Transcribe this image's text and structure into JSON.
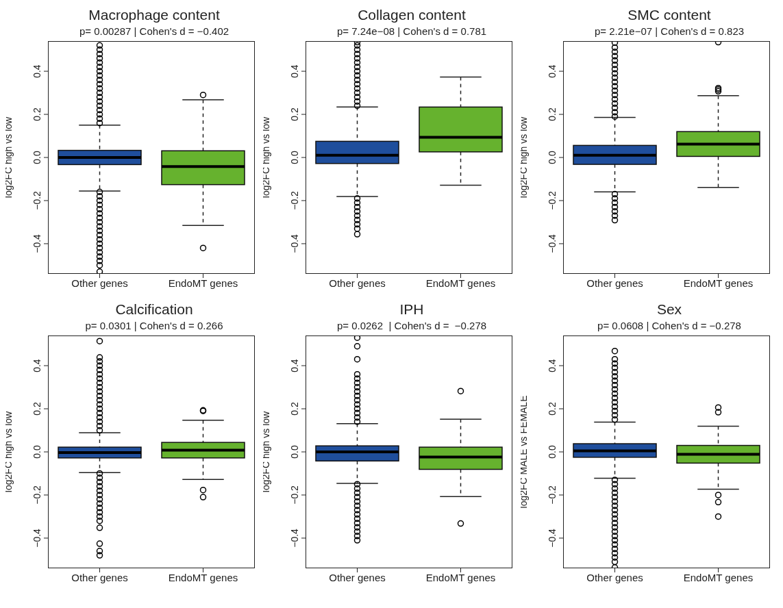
{
  "chart_data": [
    {
      "type": "box",
      "title": "Macrophage content",
      "subtitle": "p= 0.00287 | Cohen's d = −0.402",
      "ylabel": "log2FC high vs low",
      "categories": [
        "Other genes",
        "EndoMT genes"
      ],
      "colors": [
        "#1f4e9c",
        "#66b22e"
      ],
      "ylim": [
        -0.54,
        0.54
      ],
      "yticks": [
        {
          "value": -0.4,
          "label": "−0.4"
        },
        {
          "value": -0.2,
          "label": "−0.2"
        },
        {
          "value": 0,
          "label": "0.0"
        },
        {
          "value": 0.2,
          "label": "0.2"
        },
        {
          "value": 0.4,
          "label": "0.4"
        }
      ],
      "boxes": [
        {
          "low": -0.156,
          "q1": -0.033,
          "median": 0.0,
          "q3": 0.033,
          "high": 0.15,
          "outliers": [
            0.16,
            0.18,
            0.2,
            0.22,
            0.24,
            0.26,
            0.28,
            0.3,
            0.32,
            0.34,
            0.36,
            0.38,
            0.4,
            0.42,
            0.44,
            0.46,
            0.48,
            0.5,
            0.52,
            -0.16,
            -0.18,
            -0.2,
            -0.22,
            -0.24,
            -0.26,
            -0.28,
            -0.3,
            -0.32,
            -0.34,
            -0.36,
            -0.38,
            -0.4,
            -0.42,
            -0.44,
            -0.46,
            -0.48,
            -0.5,
            -0.53
          ]
        },
        {
          "low": -0.315,
          "q1": -0.126,
          "median": -0.042,
          "q3": 0.031,
          "high": 0.268,
          "outliers": [
            0.29,
            -0.42
          ]
        }
      ]
    },
    {
      "type": "box",
      "title": "Collagen content",
      "subtitle": "p= 7.24e−08 | Cohen's d = 0.781",
      "ylabel": "log2FC high vs low",
      "categories": [
        "Other genes",
        "EndoMT genes"
      ],
      "colors": [
        "#1f4e9c",
        "#66b22e"
      ],
      "ylim": [
        -0.54,
        0.54
      ],
      "yticks": [
        {
          "value": -0.4,
          "label": "−0.4"
        },
        {
          "value": -0.2,
          "label": "−0.2"
        },
        {
          "value": 0,
          "label": "0.0"
        },
        {
          "value": 0.2,
          "label": "0.2"
        },
        {
          "value": 0.4,
          "label": "0.4"
        }
      ],
      "boxes": [
        {
          "low": -0.181,
          "q1": -0.028,
          "median": 0.01,
          "q3": 0.075,
          "high": 0.234,
          "outliers": [
            0.24,
            0.26,
            0.28,
            0.3,
            0.32,
            0.34,
            0.36,
            0.38,
            0.4,
            0.42,
            0.44,
            0.46,
            0.48,
            0.5,
            0.52,
            0.535,
            -0.19,
            -0.21,
            -0.23,
            -0.25,
            -0.27,
            -0.29,
            -0.31,
            -0.33,
            -0.356
          ]
        },
        {
          "low": -0.129,
          "q1": 0.026,
          "median": 0.094,
          "q3": 0.234,
          "high": 0.373
        }
      ]
    },
    {
      "type": "box",
      "title": "SMC content",
      "subtitle": "p= 2.21e−07 | Cohen's d = 0.823",
      "ylabel": "log2FC high vs low",
      "categories": [
        "Other genes",
        "EndoMT genes"
      ],
      "colors": [
        "#1f4e9c",
        "#66b22e"
      ],
      "ylim": [
        -0.54,
        0.54
      ],
      "yticks": [
        {
          "value": -0.4,
          "label": "−0.4"
        },
        {
          "value": -0.2,
          "label": "−0.2"
        },
        {
          "value": 0,
          "label": "0.0"
        },
        {
          "value": 0.2,
          "label": "0.2"
        },
        {
          "value": 0.4,
          "label": "0.4"
        }
      ],
      "boxes": [
        {
          "low": -0.16,
          "q1": -0.032,
          "median": 0.01,
          "q3": 0.056,
          "high": 0.186,
          "outliers": [
            0.19,
            0.21,
            0.23,
            0.25,
            0.27,
            0.29,
            0.31,
            0.33,
            0.35,
            0.37,
            0.39,
            0.41,
            0.43,
            0.45,
            0.47,
            0.49,
            0.51,
            0.533,
            -0.17,
            -0.19,
            -0.21,
            -0.23,
            -0.25,
            -0.27,
            -0.291
          ]
        },
        {
          "low": -0.139,
          "q1": 0.005,
          "median": 0.062,
          "q3": 0.12,
          "high": 0.287,
          "outliers": [
            0.307,
            0.315,
            0.322,
            0.535
          ]
        }
      ]
    },
    {
      "type": "box",
      "title": "Calcification",
      "subtitle": "p= 0.0301 | Cohen's d = 0.266",
      "ylabel": "log2FC high vs low",
      "categories": [
        "Other genes",
        "EndoMT genes"
      ],
      "colors": [
        "#1f4e9c",
        "#66b22e"
      ],
      "ylim": [
        -0.54,
        0.54
      ],
      "yticks": [
        {
          "value": -0.4,
          "label": "−0.4"
        },
        {
          "value": -0.2,
          "label": "−0.2"
        },
        {
          "value": 0,
          "label": "0.0"
        },
        {
          "value": 0.2,
          "label": "0.2"
        },
        {
          "value": 0.4,
          "label": "0.4"
        }
      ],
      "boxes": [
        {
          "low": -0.096,
          "q1": -0.028,
          "median": -0.003,
          "q3": 0.022,
          "high": 0.089,
          "outliers": [
            0.1,
            0.12,
            0.14,
            0.16,
            0.18,
            0.2,
            0.22,
            0.24,
            0.26,
            0.28,
            0.3,
            0.32,
            0.34,
            0.36,
            0.38,
            0.4,
            0.42,
            0.438,
            0.514,
            -0.1,
            -0.12,
            -0.14,
            -0.16,
            -0.18,
            -0.2,
            -0.22,
            -0.24,
            -0.26,
            -0.28,
            -0.3,
            -0.32,
            -0.352,
            -0.426,
            -0.46,
            -0.48
          ]
        },
        {
          "low": -0.128,
          "q1": -0.028,
          "median": 0.008,
          "q3": 0.044,
          "high": 0.147,
          "outliers": [
            0.19,
            0.193,
            -0.177,
            -0.21
          ]
        }
      ]
    },
    {
      "type": "box",
      "title": "IPH",
      "subtitle": "p= 0.0262  | Cohen's d =  −0.278",
      "ylabel": "log2FC high vs low",
      "categories": [
        "Other genes",
        "EndoMT genes"
      ],
      "colors": [
        "#1f4e9c",
        "#66b22e"
      ],
      "ylim": [
        -0.54,
        0.54
      ],
      "yticks": [
        {
          "value": -0.4,
          "label": "−0.4"
        },
        {
          "value": -0.2,
          "label": "−0.2"
        },
        {
          "value": 0,
          "label": "0.0"
        },
        {
          "value": 0.2,
          "label": "0.2"
        },
        {
          "value": 0.4,
          "label": "0.4"
        }
      ],
      "boxes": [
        {
          "low": -0.146,
          "q1": -0.042,
          "median": 0.0,
          "q3": 0.028,
          "high": 0.131,
          "outliers": [
            0.14,
            0.16,
            0.18,
            0.2,
            0.22,
            0.24,
            0.26,
            0.28,
            0.3,
            0.32,
            0.34,
            0.36,
            0.43,
            0.49,
            0.53,
            -0.15,
            -0.17,
            -0.19,
            -0.21,
            -0.23,
            -0.25,
            -0.27,
            -0.29,
            -0.31,
            -0.33,
            -0.35,
            -0.37,
            -0.39,
            -0.41
          ]
        },
        {
          "low": -0.207,
          "q1": -0.081,
          "median": -0.024,
          "q3": 0.022,
          "high": 0.152,
          "outliers": [
            0.282,
            -0.332
          ]
        }
      ]
    },
    {
      "type": "box",
      "title": "Sex",
      "subtitle": "p= 0.0608 | Cohen's d = −0.278",
      "ylabel": "log2FC MALE vs FEMALE",
      "categories": [
        "Other genes",
        "EndoMT genes"
      ],
      "colors": [
        "#1f4e9c",
        "#66b22e"
      ],
      "ylim": [
        -0.54,
        0.54
      ],
      "yticks": [
        {
          "value": -0.4,
          "label": "−0.4"
        },
        {
          "value": -0.2,
          "label": "−0.2"
        },
        {
          "value": 0,
          "label": "0.0"
        },
        {
          "value": 0.2,
          "label": "0.2"
        },
        {
          "value": 0.4,
          "label": "0.4"
        }
      ],
      "boxes": [
        {
          "low": -0.122,
          "q1": -0.025,
          "median": 0.005,
          "q3": 0.038,
          "high": 0.138,
          "outliers": [
            0.15,
            0.17,
            0.19,
            0.21,
            0.23,
            0.25,
            0.27,
            0.29,
            0.31,
            0.33,
            0.35,
            0.37,
            0.39,
            0.41,
            0.43,
            0.468,
            -0.13,
            -0.15,
            -0.17,
            -0.19,
            -0.21,
            -0.23,
            -0.25,
            -0.27,
            -0.29,
            -0.31,
            -0.33,
            -0.35,
            -0.37,
            -0.39,
            -0.41,
            -0.43,
            -0.45,
            -0.47,
            -0.49,
            -0.51,
            -0.536
          ]
        },
        {
          "low": -0.173,
          "q1": -0.052,
          "median": -0.011,
          "q3": 0.03,
          "high": 0.119,
          "outliers": [
            0.184,
            0.206,
            -0.2,
            -0.233,
            -0.3
          ]
        }
      ]
    }
  ]
}
